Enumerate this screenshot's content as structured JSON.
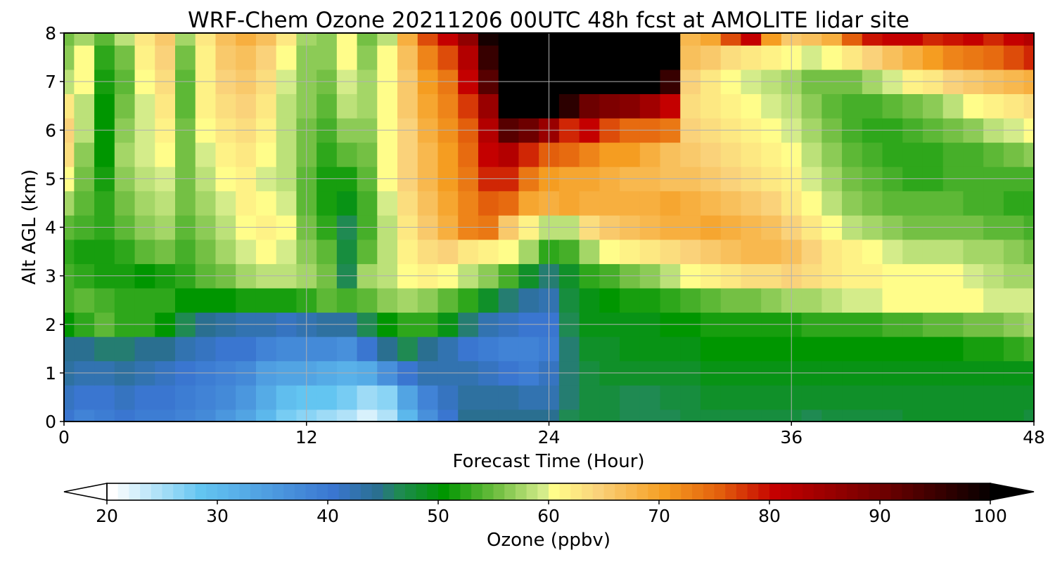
{
  "chart_data": {
    "type": "heatmap",
    "title": "WRF-Chem Ozone  20211206 00UTC 48h fcst at AMOLITE lidar site",
    "xlabel": "Forecast Time (Hour)",
    "ylabel": "Alt AGL (km)",
    "xlim": [
      0,
      48
    ],
    "ylim": [
      0,
      8
    ],
    "xticks": [
      0,
      12,
      24,
      36,
      48
    ],
    "yticks": [
      0,
      1,
      2,
      3,
      4,
      5,
      6,
      7,
      8
    ],
    "grid": true,
    "x": [
      0,
      1,
      2,
      3,
      4,
      5,
      6,
      7,
      8,
      9,
      10,
      11,
      12,
      13,
      14,
      15,
      16,
      17,
      18,
      19,
      20,
      21,
      22,
      23,
      24,
      25,
      26,
      27,
      28,
      29,
      30,
      31,
      32,
      33,
      34,
      35,
      36,
      37,
      38,
      39,
      40,
      41,
      42,
      43,
      44,
      45,
      46,
      47,
      48
    ],
    "y": [
      0,
      0.5,
      1,
      1.5,
      2,
      2.5,
      3,
      3.5,
      4,
      4.5,
      5,
      5.5,
      6,
      6.5,
      7,
      7.5,
      8
    ],
    "z": [
      [
        40,
        38,
        39,
        40,
        39,
        39,
        38,
        37,
        35,
        33,
        30,
        27,
        26,
        25,
        24,
        22,
        24,
        30,
        36,
        40,
        44,
        44,
        44,
        44,
        44,
        46,
        47,
        47,
        46,
        46,
        46,
        47,
        47,
        47,
        47,
        47,
        47,
        46,
        47,
        47,
        47,
        47,
        48,
        48,
        48,
        48,
        48,
        48,
        47
      ],
      [
        41,
        40,
        40,
        41,
        40,
        40,
        39,
        38,
        37,
        35,
        32,
        29,
        28,
        28,
        27,
        25,
        26,
        33,
        38,
        41,
        43,
        43,
        43,
        42,
        42,
        45,
        47,
        47,
        46,
        46,
        47,
        47,
        48,
        48,
        48,
        48,
        48,
        48,
        48,
        48,
        48,
        48,
        48,
        48,
        48,
        48,
        48,
        48,
        48
      ],
      [
        43,
        42,
        42,
        43,
        42,
        41,
        40,
        39,
        38,
        37,
        34,
        33,
        33,
        32,
        31,
        32,
        36,
        40,
        42,
        42,
        42,
        41,
        40,
        39,
        41,
        45,
        47,
        48,
        48,
        48,
        48,
        48,
        49,
        49,
        49,
        49,
        49,
        49,
        49,
        49,
        49,
        49,
        49,
        49,
        49,
        49,
        49,
        49,
        49
      ],
      [
        44,
        44,
        45,
        45,
        44,
        44,
        42,
        41,
        40,
        40,
        38,
        37,
        37,
        37,
        36,
        40,
        44,
        46,
        44,
        42,
        40,
        39,
        38,
        38,
        39,
        45,
        48,
        48,
        49,
        49,
        49,
        49,
        50,
        50,
        50,
        50,
        50,
        50,
        50,
        50,
        50,
        50,
        50,
        50,
        50,
        51,
        51,
        52,
        53
      ],
      [
        50,
        52,
        54,
        52,
        52,
        50,
        46,
        44,
        43,
        42,
        42,
        41,
        42,
        43,
        43,
        46,
        50,
        52,
        52,
        49,
        45,
        42,
        41,
        40,
        40,
        46,
        49,
        49,
        49,
        49,
        50,
        50,
        51,
        51,
        51,
        51,
        51,
        52,
        52,
        52,
        52,
        53,
        53,
        54,
        54,
        55,
        55,
        56,
        57
      ],
      [
        53,
        54,
        53,
        52,
        52,
        52,
        50,
        50,
        50,
        51,
        51,
        51,
        52,
        54,
        53,
        54,
        56,
        57,
        56,
        54,
        52,
        48,
        45,
        43,
        42,
        47,
        49,
        50,
        51,
        51,
        52,
        53,
        54,
        55,
        55,
        56,
        57,
        57,
        58,
        59,
        59,
        60,
        60,
        60,
        60,
        60,
        59,
        59,
        59
      ],
      [
        53,
        52,
        51,
        51,
        50,
        51,
        52,
        54,
        55,
        57,
        58,
        58,
        57,
        55,
        46,
        57,
        58,
        60,
        61,
        60,
        58,
        56,
        53,
        48,
        45,
        48,
        52,
        53,
        55,
        56,
        58,
        60,
        61,
        62,
        63,
        63,
        64,
        63,
        62,
        61,
        61,
        60,
        60,
        60,
        60,
        59,
        58,
        57,
        57
      ],
      [
        52,
        51,
        51,
        52,
        54,
        55,
        53,
        55,
        57,
        59,
        60,
        59,
        56,
        54,
        47,
        54,
        58,
        61,
        63,
        64,
        62,
        61,
        60,
        57,
        52,
        53,
        57,
        60,
        61,
        62,
        63,
        64,
        65,
        66,
        67,
        67,
        66,
        64,
        62,
        61,
        60,
        59,
        58,
        58,
        58,
        57,
        57,
        56,
        55
      ],
      [
        54,
        53,
        52,
        54,
        56,
        57,
        54,
        56,
        58,
        60,
        61,
        60,
        55,
        52,
        46,
        53,
        58,
        62,
        65,
        68,
        72,
        73,
        65,
        61,
        58,
        58,
        63,
        65,
        66,
        67,
        68,
        68,
        69,
        68,
        67,
        66,
        64,
        62,
        60,
        58,
        57,
        56,
        55,
        55,
        55,
        55,
        54,
        54,
        53
      ],
      [
        57,
        54,
        52,
        55,
        57,
        58,
        55,
        57,
        59,
        61,
        60,
        59,
        54,
        51,
        49,
        53,
        59,
        63,
        66,
        69,
        72,
        75,
        74,
        69,
        68,
        69,
        68,
        68,
        68,
        68,
        69,
        68,
        67,
        66,
        65,
        64,
        62,
        60,
        58,
        56,
        55,
        54,
        54,
        54,
        54,
        53,
        53,
        52,
        52
      ],
      [
        60,
        55,
        51,
        56,
        58,
        59,
        55,
        58,
        60,
        61,
        59,
        58,
        54,
        51,
        51,
        54,
        60,
        64,
        67,
        70,
        73,
        78,
        78,
        73,
        70,
        69,
        69,
        68,
        67,
        67,
        66,
        66,
        65,
        64,
        63,
        62,
        61,
        59,
        57,
        55,
        54,
        53,
        52,
        52,
        53,
        53,
        53,
        53,
        53
      ],
      [
        63,
        56,
        50,
        57,
        59,
        60,
        55,
        59,
        61,
        62,
        60,
        58,
        55,
        52,
        54,
        55,
        60,
        64,
        67,
        70,
        74,
        80,
        82,
        78,
        75,
        74,
        72,
        70,
        70,
        68,
        66,
        65,
        64,
        63,
        62,
        61,
        60,
        58,
        56,
        54,
        53,
        52,
        52,
        52,
        53,
        53,
        54,
        55,
        56
      ],
      [
        64,
        58,
        50,
        56,
        59,
        61,
        55,
        60,
        62,
        63,
        61,
        58,
        55,
        53,
        56,
        56,
        60,
        64,
        68,
        71,
        75,
        82,
        92,
        90,
        85,
        78,
        80,
        76,
        74,
        74,
        73,
        64,
        63,
        62,
        61,
        60,
        59,
        57,
        55,
        53,
        52,
        52,
        53,
        54,
        55,
        56,
        58,
        59,
        60
      ],
      [
        62,
        58,
        50,
        55,
        59,
        62,
        54,
        61,
        63,
        64,
        62,
        58,
        56,
        54,
        58,
        57,
        60,
        65,
        69,
        72,
        77,
        85,
        100,
        100,
        100,
        96,
        90,
        88,
        87,
        84,
        80,
        63,
        62,
        61,
        60,
        59,
        58,
        56,
        54,
        53,
        53,
        54,
        55,
        56,
        58,
        60,
        61,
        62,
        63
      ],
      [
        58,
        60,
        51,
        54,
        60,
        63,
        54,
        61,
        64,
        65,
        63,
        59,
        56,
        55,
        59,
        57,
        60,
        65,
        70,
        73,
        80,
        92,
        100,
        100,
        100,
        100,
        100,
        100,
        100,
        100,
        95,
        64,
        62,
        60,
        59,
        58,
        57,
        55,
        55,
        55,
        57,
        59,
        61,
        62,
        64,
        65,
        66,
        67,
        68
      ],
      [
        56,
        60,
        52,
        55,
        61,
        64,
        55,
        61,
        65,
        66,
        64,
        60,
        56,
        56,
        60,
        56,
        60,
        66,
        72,
        76,
        82,
        95,
        100,
        100,
        100,
        100,
        100,
        100,
        100,
        100,
        100,
        66,
        65,
        63,
        62,
        61,
        60,
        59,
        60,
        62,
        64,
        66,
        68,
        70,
        72,
        73,
        74,
        76,
        78
      ],
      [
        55,
        57,
        54,
        58,
        62,
        65,
        57,
        62,
        66,
        68,
        66,
        62,
        57,
        56,
        60,
        55,
        58,
        68,
        76,
        80,
        86,
        98,
        100,
        100,
        100,
        100,
        100,
        100,
        100,
        100,
        100,
        67,
        69,
        76,
        80,
        70,
        65,
        66,
        68,
        75,
        79,
        80,
        80,
        78,
        79,
        80,
        78,
        80,
        82
      ]
    ],
    "colorbar": {
      "label": "Ozone  (ppbv)",
      "min": 20,
      "max": 100,
      "step": 1,
      "ticks": [
        20,
        30,
        40,
        50,
        60,
        70,
        80,
        90,
        100
      ],
      "extend": "both"
    },
    "colormap": [
      [
        20,
        "#ffffff"
      ],
      [
        28,
        "#63c5f1"
      ],
      [
        40,
        "#3a76d0"
      ],
      [
        44,
        "#2a6f90"
      ],
      [
        46,
        "#1f8a52"
      ],
      [
        50,
        "#009600"
      ],
      [
        55,
        "#74c044"
      ],
      [
        59,
        "#d4ec8a"
      ],
      [
        60,
        "#fffd8a"
      ],
      [
        64,
        "#fad27a"
      ],
      [
        70,
        "#f59d21"
      ],
      [
        75,
        "#e35f0c"
      ],
      [
        80,
        "#c40000"
      ],
      [
        90,
        "#6d0000"
      ],
      [
        100,
        "#000000"
      ]
    ]
  }
}
